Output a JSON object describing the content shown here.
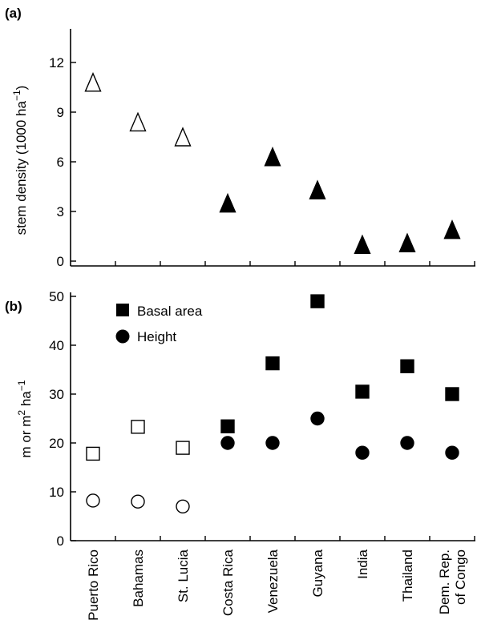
{
  "chart_data": [
    {
      "type": "scatter",
      "panel_label": "(a)",
      "ylabel_parts": [
        "stem density (1000 ha",
        "−1",
        ")"
      ],
      "ylim": [
        0,
        14
      ],
      "yticks": [
        "0",
        "3",
        "6",
        "9",
        "12"
      ],
      "categories": [
        "Puerto Rico",
        "Bahamas",
        "St. Lucia",
        "Costa Rica",
        "Venezuela",
        "Guyana",
        "India",
        "Thailand",
        "Dem. Rep. of Congo"
      ],
      "series": [
        {
          "marker": "triangle",
          "values": [
            10.8,
            8.4,
            7.5,
            3.5,
            6.3,
            4.3,
            1.0,
            1.1,
            1.9
          ],
          "filled": [
            false,
            false,
            false,
            true,
            true,
            true,
            true,
            true,
            true
          ]
        }
      ],
      "grid": false
    },
    {
      "type": "scatter",
      "panel_label": "(b)",
      "ylabel_parts": [
        "m or m",
        "2",
        " ha",
        "−1"
      ],
      "ylim": [
        0,
        50
      ],
      "yticks": [
        "0",
        "10",
        "20",
        "30",
        "40",
        "50"
      ],
      "categories": [
        "Puerto Rico",
        "Bahamas",
        "St. Lucia",
        "Costa Rica",
        "Venezuela",
        "Guyana",
        "India",
        "Thailand",
        "Dem. Rep. of Congo"
      ],
      "category_label_lines": [
        [
          "Puerto Rico"
        ],
        [
          "Bahamas"
        ],
        [
          "St. Lucia"
        ],
        [
          "Costa Rica"
        ],
        [
          "Venezuela"
        ],
        [
          "Guyana"
        ],
        [
          "India"
        ],
        [
          "Thailand"
        ],
        [
          "Dem. Rep.",
          "of Congo"
        ]
      ],
      "series": [
        {
          "name": "Basal area",
          "marker": "square",
          "values": [
            17.8,
            23.3,
            19.0,
            23.4,
            36.3,
            49.0,
            30.5,
            35.7,
            30.0
          ],
          "filled": [
            false,
            false,
            false,
            true,
            true,
            true,
            true,
            true,
            true
          ]
        },
        {
          "name": "Height",
          "marker": "circle",
          "values": [
            8.2,
            8.0,
            7.0,
            20.0,
            20.0,
            25.0,
            18.0,
            20.0,
            18.0
          ],
          "filled": [
            false,
            false,
            false,
            true,
            true,
            true,
            true,
            true,
            true
          ]
        }
      ],
      "legend_position": "top-left",
      "grid": false
    }
  ]
}
